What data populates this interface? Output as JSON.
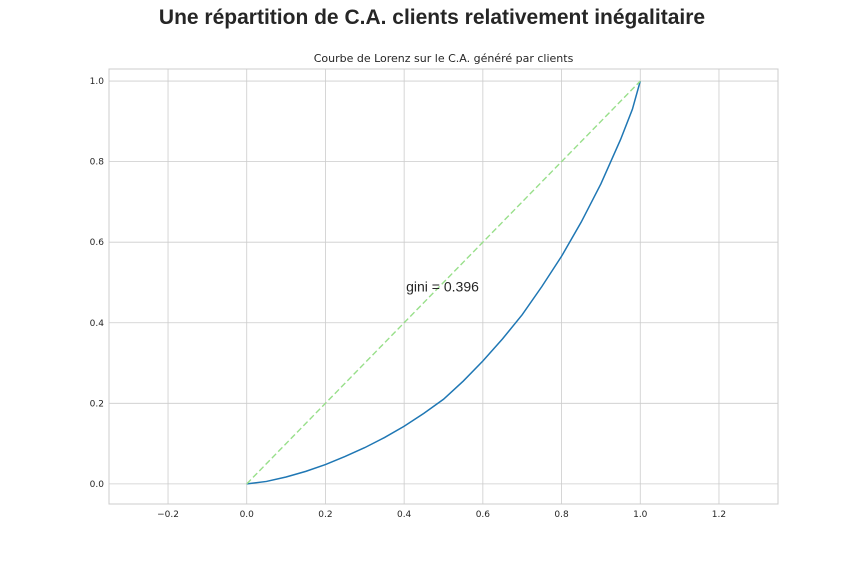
{
  "suptitle": "Une répartition de C.A. clients relativement inégalitaire",
  "chart_data": {
    "type": "line",
    "title": "Courbe de Lorenz sur le C.A. généré par clients",
    "xlabel": "",
    "ylabel": "",
    "xlim": [
      -0.35,
      1.35
    ],
    "ylim": [
      -0.05,
      1.03
    ],
    "xticks": [
      -0.2,
      0.0,
      0.2,
      0.4,
      0.6,
      0.8,
      1.0,
      1.2
    ],
    "xtick_labels": [
      "−0.2",
      "0.0",
      "0.2",
      "0.4",
      "0.6",
      "0.8",
      "1.0",
      "1.2"
    ],
    "yticks": [
      0.0,
      0.2,
      0.4,
      0.6,
      0.8,
      1.0
    ],
    "ytick_labels": [
      "0.0",
      "0.2",
      "0.4",
      "0.6",
      "0.8",
      "1.0"
    ],
    "grid": true,
    "series": [
      {
        "style": "solid",
        "color": "#1f77b4",
        "x": [
          0.0,
          0.05,
          0.1,
          0.15,
          0.2,
          0.25,
          0.3,
          0.35,
          0.4,
          0.45,
          0.5,
          0.55,
          0.6,
          0.65,
          0.7,
          0.75,
          0.8,
          0.85,
          0.9,
          0.95,
          0.98,
          1.0
        ],
        "y": [
          0.0,
          0.006,
          0.017,
          0.031,
          0.048,
          0.068,
          0.09,
          0.115,
          0.143,
          0.175,
          0.21,
          0.255,
          0.305,
          0.36,
          0.42,
          0.49,
          0.565,
          0.65,
          0.745,
          0.855,
          0.93,
          1.0
        ]
      },
      {
        "style": "dashed",
        "color": "#98df8a",
        "x": [
          0.0,
          1.0
        ],
        "y": [
          0.0,
          1.0
        ]
      }
    ],
    "annotations": [
      {
        "text": "gini = 0.396",
        "x": 0.405,
        "y": 0.49
      }
    ]
  }
}
